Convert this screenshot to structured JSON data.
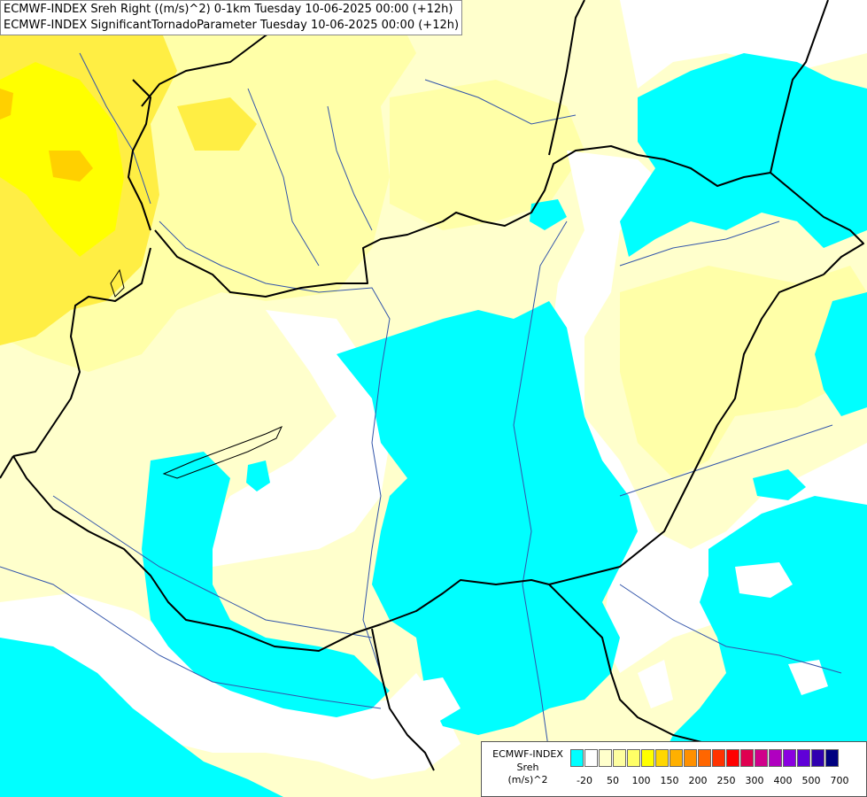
{
  "header": {
    "line1": "ECMWF-INDEX Sreh Right ((m/s)^2) 0-1km Tuesday 10-06-2025 00:00 (+12h)",
    "line2": "ECMWF-INDEX SignificantTornadoParameter Tuesday 10-06-2025 00:00 (+12h)"
  },
  "legend": {
    "name": "ECMWF-INDEX",
    "variable": "Sreh",
    "unit": "(m/s)^2",
    "tick_labels": [
      "-20",
      "50",
      "100",
      "150",
      "200",
      "250",
      "300",
      "400",
      "500",
      "700"
    ],
    "colors": [
      "#00ffff",
      "#ffffff",
      "#ffffcc",
      "#ffffa0",
      "#ffff66",
      "#ffff00",
      "#ffd700",
      "#ffb000",
      "#ff9000",
      "#ff6600",
      "#ff3300",
      "#ff0000",
      "#e00050",
      "#d0008a",
      "#b000c0",
      "#8a00e0",
      "#6000d8",
      "#3000b0",
      "#000080"
    ]
  },
  "colors": {
    "base": "#ffffcc",
    "light_yellow": "#ffffa8",
    "yellow": "#ffee44",
    "bright_yellow": "#ffff00",
    "orange": "#ffd000",
    "cyan": "#00ffff",
    "white": "#ffffff",
    "border": "#000000",
    "river": "#3355aa"
  }
}
